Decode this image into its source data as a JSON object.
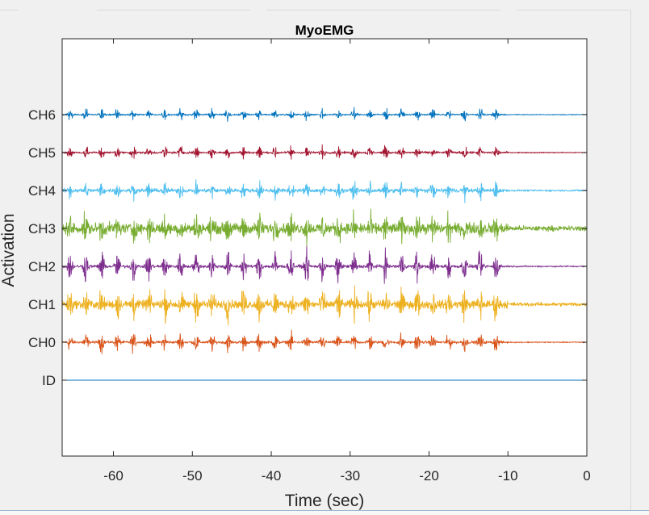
{
  "chart_data": {
    "type": "line",
    "title": "MyoEMG",
    "xlabel": "Time (sec)",
    "ylabel": "Activation",
    "xlim": [
      -66.5,
      0
    ],
    "xticks": [
      -60,
      -50,
      -40,
      -30,
      -20,
      -10,
      0
    ],
    "xtick_labels": [
      "-60",
      "-50",
      "-40",
      "-30",
      "-20",
      "-10",
      "0"
    ],
    "ylim": [
      -1,
      10
    ],
    "yticks": [
      1,
      2,
      3,
      4,
      5,
      6,
      7,
      8
    ],
    "ytick_labels": [
      "ID",
      "CH0",
      "CH1",
      "CH2",
      "CH3",
      "CH4",
      "CH5",
      "CH6"
    ],
    "grid": false,
    "legend": "none",
    "activity_end_sec": -10,
    "series": [
      {
        "channel": "ID",
        "offset": 1,
        "color": "#0072BD",
        "amplitude": 0,
        "burst_period_sec": 2,
        "constant": true
      },
      {
        "channel": "CH0",
        "offset": 2,
        "color": "#D95319",
        "amplitude": 0.35,
        "baseline_noise": 0.05,
        "burst_period_sec": 2
      },
      {
        "channel": "CH1",
        "offset": 3,
        "color": "#EDB120",
        "amplitude": 0.55,
        "baseline_noise": 0.15,
        "burst_period_sec": 2
      },
      {
        "channel": "CH2",
        "offset": 4,
        "color": "#7E2F8E",
        "amplitude": 0.6,
        "baseline_noise": 0.06,
        "burst_period_sec": 2
      },
      {
        "channel": "CH3",
        "offset": 5,
        "color": "#77AC30",
        "amplitude": 0.45,
        "baseline_noise": 0.2,
        "burst_period_sec": 2
      },
      {
        "channel": "CH4",
        "offset": 6,
        "color": "#4DBEEE",
        "amplitude": 0.3,
        "baseline_noise": 0.07,
        "burst_period_sec": 2
      },
      {
        "channel": "CH5",
        "offset": 7,
        "color": "#A2142F",
        "amplitude": 0.25,
        "baseline_noise": 0.04,
        "burst_period_sec": 2
      },
      {
        "channel": "CH6",
        "offset": 8,
        "color": "#0072BD",
        "amplitude": 0.22,
        "baseline_noise": 0.03,
        "burst_period_sec": 2
      }
    ]
  }
}
